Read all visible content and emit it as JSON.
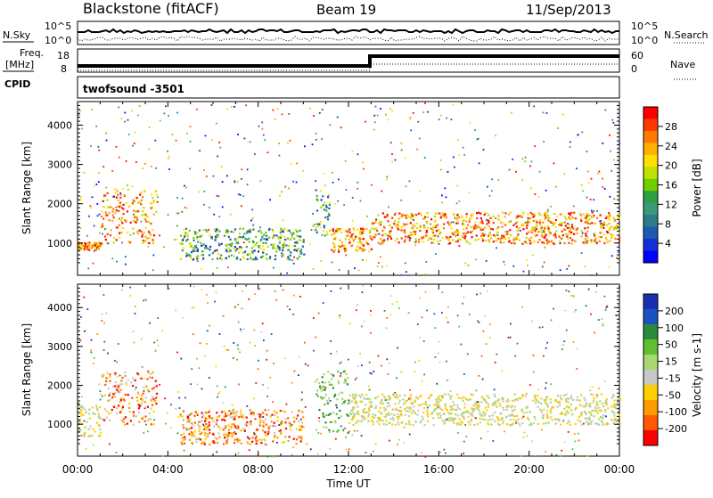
{
  "header": {
    "station": "Blackstone (fitACF)",
    "beam": "Beam 19",
    "date": "11/Sep/2013"
  },
  "top_panels": {
    "nsky_label": "N.Sky",
    "nsearch_label": "N.Search",
    "nsky_ticks": [
      "10^5",
      "10^0"
    ],
    "nsky_right_ticks": [
      "10^5",
      "10^0"
    ],
    "freq_label_1": "Freq.",
    "freq_label_2": "[MHz]",
    "freq_ticks": [
      "18",
      "8"
    ],
    "nave_label": "Nave",
    "nave_ticks": [
      "60",
      "0"
    ],
    "cpid_label": "CPID",
    "cpid_value": "twofsound -3501"
  },
  "chart_data": [
    {
      "type": "heatmap",
      "name": "power",
      "ylabel": "Slant Range [km]",
      "xlabel": "Time UT",
      "xlim_hours": [
        0,
        24
      ],
      "ylim_km": [
        180,
        4600
      ],
      "yticks": [
        "1000",
        "2000",
        "3000",
        "4000"
      ],
      "xticks": [
        "00:00",
        "04:00",
        "08:00",
        "12:00",
        "16:00",
        "20:00",
        "00:00"
      ],
      "colorbar": {
        "title": "Power [dB]",
        "ticks": [
          "28",
          "24",
          "20",
          "16",
          "12",
          "8",
          "4"
        ],
        "colors": [
          "#ff0000",
          "#ff3a00",
          "#ff7a00",
          "#ffb000",
          "#ffe000",
          "#bfe000",
          "#6fd000",
          "#2fa040",
          "#3c9a78",
          "#2c7a8a",
          "#1e58b0",
          "#1230d8",
          "#0000ff"
        ]
      },
      "bands": [
        {
          "t0": 0.0,
          "t1": 1.0,
          "r0": 850,
          "r1": 1050,
          "level": "high"
        },
        {
          "t0": 1.0,
          "t1": 3.5,
          "r0": 1000,
          "r1": 2400,
          "level": "high"
        },
        {
          "t0": 4.5,
          "t1": 10.0,
          "r0": 600,
          "r1": 1400,
          "level": "mid"
        },
        {
          "t0": 10.5,
          "t1": 11.2,
          "r0": 1200,
          "r1": 2400,
          "level": "mid"
        },
        {
          "t0": 11.2,
          "t1": 13.0,
          "r0": 800,
          "r1": 1400,
          "level": "high"
        },
        {
          "t0": 13.0,
          "t1": 24.0,
          "r0": 1000,
          "r1": 1800,
          "level": "high"
        }
      ]
    },
    {
      "type": "heatmap",
      "name": "velocity",
      "ylabel": "Slant Range [km]",
      "xlabel": "Time UT",
      "xlim_hours": [
        0,
        24
      ],
      "ylim_km": [
        180,
        4600
      ],
      "yticks": [
        "1000",
        "2000",
        "3000",
        "4000"
      ],
      "xticks": [
        "00:00",
        "04:00",
        "08:00",
        "12:00",
        "16:00",
        "20:00",
        "00:00"
      ],
      "colorbar": {
        "title": "Velocity [m s-1]",
        "ticks": [
          "200",
          "100",
          "50",
          "15",
          "-15",
          "-50",
          "-100",
          "-200"
        ],
        "colors": [
          "#1a2fb0",
          "#1c52c0",
          "#2a8a3a",
          "#5fbf30",
          "#a8d870",
          "#c8c8c8",
          "#ffd000",
          "#ff9a00",
          "#ff5a00",
          "#ff0000"
        ]
      },
      "bands": [
        {
          "t0": 0.0,
          "t1": 1.0,
          "r0": 700,
          "r1": 1500,
          "level": "gray"
        },
        {
          "t0": 1.0,
          "t1": 3.5,
          "r0": 1000,
          "r1": 2400,
          "level": "warm"
        },
        {
          "t0": 4.5,
          "t1": 10.0,
          "r0": 500,
          "r1": 1400,
          "level": "warm"
        },
        {
          "t0": 10.5,
          "t1": 12.0,
          "r0": 800,
          "r1": 2400,
          "level": "green"
        },
        {
          "t0": 12.0,
          "t1": 24.0,
          "r0": 1000,
          "r1": 1800,
          "level": "gray"
        }
      ]
    }
  ]
}
